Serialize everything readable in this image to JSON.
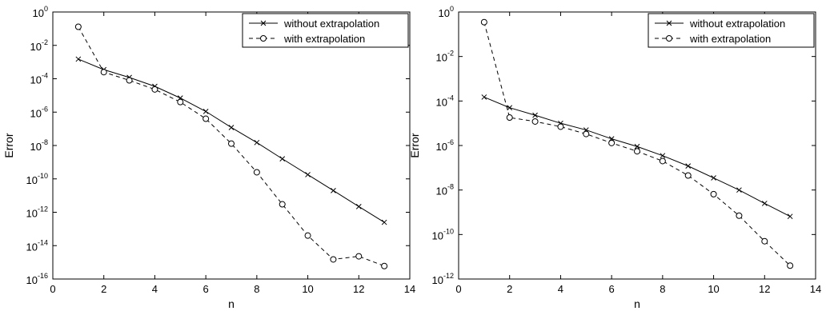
{
  "chart_data": [
    {
      "type": "line",
      "xlabel": "n",
      "ylabel": "Error",
      "xlim": [
        0,
        14
      ],
      "ylim_exponents": [
        -16,
        0
      ],
      "yscale": "log",
      "xticks": [
        "0",
        "2",
        "4",
        "6",
        "8",
        "10",
        "12",
        "14"
      ],
      "yticks": [
        {
          "base": "10",
          "exp": "0"
        },
        {
          "base": "10",
          "exp": "-2"
        },
        {
          "base": "10",
          "exp": "-4"
        },
        {
          "base": "10",
          "exp": "-6"
        },
        {
          "base": "10",
          "exp": "-8"
        },
        {
          "base": "10",
          "exp": "-10"
        },
        {
          "base": "10",
          "exp": "-12"
        },
        {
          "base": "10",
          "exp": "-14"
        },
        {
          "base": "10",
          "exp": "-16"
        }
      ],
      "legend_position": "top-right",
      "grid": false,
      "x": [
        1,
        2,
        3,
        4,
        5,
        6,
        7,
        8,
        9,
        10,
        11,
        12,
        13
      ],
      "series": [
        {
          "name": "without extrapolation",
          "style": "solid",
          "marker": "x",
          "values": [
            0.0015,
            0.00035,
            0.00012,
            3.5e-05,
            7e-06,
            1.1e-06,
            1.2e-07,
            1.5e-08,
            1.6e-09,
            1.8e-10,
            2e-11,
            2.2e-12,
            2.5e-13
          ]
        },
        {
          "name": "with extrapolation",
          "style": "dashed",
          "marker": "o",
          "values": [
            0.13,
            0.00025,
            8e-05,
            2.3e-05,
            4e-06,
            4e-07,
            1.3e-08,
            2.5e-10,
            3e-12,
            4e-14,
            1.5e-15,
            2.3e-15,
            6e-16
          ]
        }
      ]
    },
    {
      "type": "line",
      "xlabel": "n",
      "ylabel": "Error",
      "xlim": [
        0,
        14
      ],
      "ylim_exponents": [
        -12,
        0
      ],
      "yscale": "log",
      "xticks": [
        "0",
        "2",
        "4",
        "6",
        "8",
        "10",
        "12",
        "14"
      ],
      "yticks": [
        {
          "base": "10",
          "exp": "0"
        },
        {
          "base": "10",
          "exp": "-2"
        },
        {
          "base": "10",
          "exp": "-4"
        },
        {
          "base": "10",
          "exp": "-6"
        },
        {
          "base": "10",
          "exp": "-8"
        },
        {
          "base": "10",
          "exp": "-10"
        },
        {
          "base": "10",
          "exp": "-12"
        }
      ],
      "legend_position": "top-right",
      "grid": false,
      "x": [
        1,
        2,
        3,
        4,
        5,
        6,
        7,
        8,
        9,
        10,
        11,
        12,
        13
      ],
      "series": [
        {
          "name": "without extrapolation",
          "style": "solid",
          "marker": "x",
          "values": [
            0.00015,
            5e-05,
            2.3e-05,
            1e-05,
            5e-06,
            2e-06,
            9e-07,
            3.5e-07,
            1.2e-07,
            3.5e-08,
            1e-08,
            2.5e-09,
            6.5e-10
          ]
        },
        {
          "name": "with extrapolation",
          "style": "dashed",
          "marker": "o",
          "values": [
            0.35,
            1.8e-05,
            1.2e-05,
            7e-06,
            3.3e-06,
            1.3e-06,
            5.5e-07,
            2e-07,
            4.5e-08,
            6.5e-09,
            7e-10,
            5e-11,
            4e-12
          ]
        }
      ]
    }
  ]
}
